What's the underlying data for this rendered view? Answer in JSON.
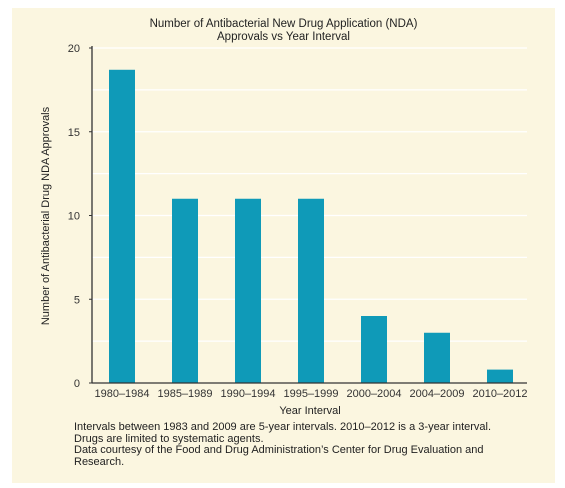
{
  "chart_data": {
    "type": "bar",
    "title": [
      "Number of Antibacterial New Drug Application (NDA)",
      "Approvals vs Year Interval"
    ],
    "xlabel": "Year Interval",
    "ylabel": "Number of Antibacterial Drug NDA Approvals",
    "categories": [
      "1980–1984",
      "1985–1989",
      "1990–1994",
      "1995–1999",
      "2000–2004",
      "2004–2009",
      "2010–2012"
    ],
    "values": [
      18.7,
      11,
      11,
      11,
      4,
      3,
      0.8
    ],
    "ylim": [
      0,
      20
    ],
    "yticks": [
      0,
      5,
      10,
      15,
      20
    ],
    "grid": true,
    "colors": {
      "bar": "#0f9ab8",
      "grid": "#ffffff",
      "axis": "#333333",
      "panel": "#fbf6e0"
    }
  },
  "footnote": [
    "Intervals between 1983 and 2009 are 5-year intervals. 2010–2012 is a 3-year interval.",
    "Drugs are limited to systematic agents.",
    "Data courtesy of the Food and Drug Administration’s Center for Drug Evaluation and",
    "Research."
  ]
}
